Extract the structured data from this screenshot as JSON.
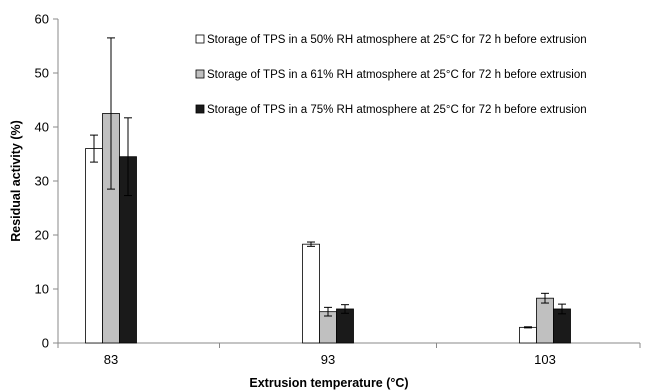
{
  "chart_data": {
    "type": "bar",
    "xlabel": "Extrusion temperature (°C)",
    "ylabel": "Residual activity (%)",
    "ylim": [
      0,
      60
    ],
    "yticks": [
      0,
      10,
      20,
      30,
      40,
      50,
      60
    ],
    "categories": [
      "83",
      "93",
      "103"
    ],
    "grid": false,
    "legend_position": "top-right",
    "error_bars": true,
    "series": [
      {
        "name": "Storage of TPS in a 50% RH atmosphere at 25°C for 72 h before extrusion",
        "color": "#ffffff",
        "values": [
          36.0,
          18.3,
          2.9
        ],
        "errors": [
          2.5,
          0.4,
          0.1
        ]
      },
      {
        "name": "Storage of TPS in a 61% RH atmosphere at 25°C for 72 h before extrusion",
        "color": "#c0c0c0",
        "values": [
          42.5,
          5.8,
          8.3
        ],
        "errors": [
          14.0,
          0.8,
          0.9
        ]
      },
      {
        "name": "Storage of TPS in a 75% RH atmosphere at 25°C for 72 h before extrusion",
        "color": "#1a1a1a",
        "values": [
          34.5,
          6.3,
          6.3
        ],
        "errors": [
          7.2,
          0.8,
          0.9
        ]
      }
    ]
  }
}
